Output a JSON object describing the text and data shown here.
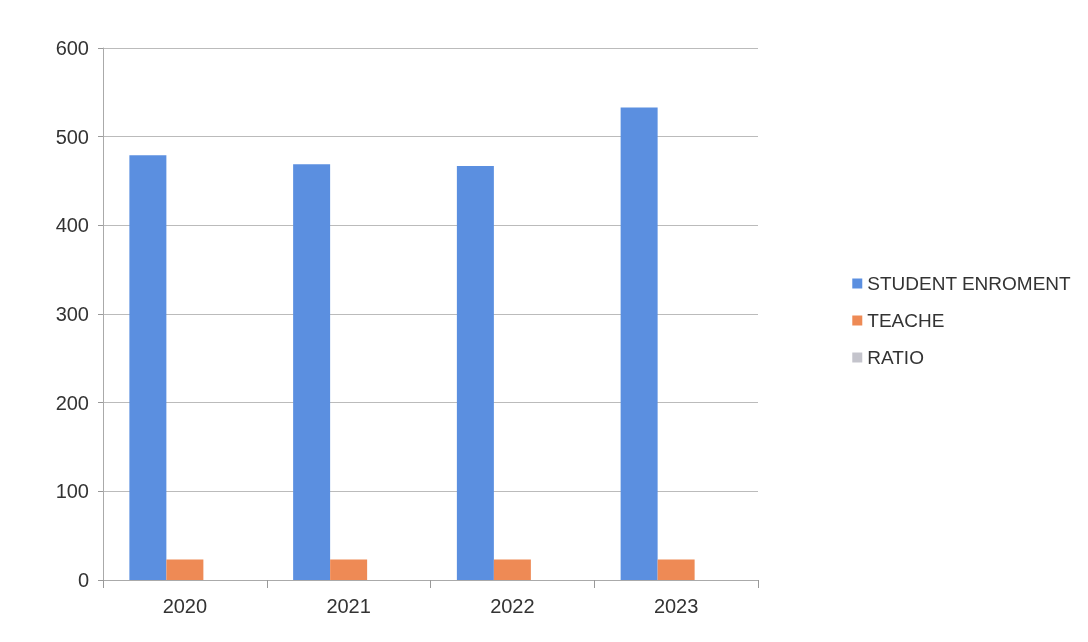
{
  "chart_data": {
    "type": "bar",
    "categories": [
      "2020",
      "2021",
      "2022",
      "2023"
    ],
    "series": [
      {
        "name": "STUDENT ENROMENT",
        "color": "#5b8fe0",
        "values": [
          479,
          469,
          467,
          533
        ]
      },
      {
        "name": "TEACHE",
        "color": "#ee8a55",
        "values": [
          23,
          23,
          23,
          23
        ]
      },
      {
        "name": "RATIO",
        "color": "#c4c4cc",
        "values": [
          null,
          null,
          null,
          null
        ]
      }
    ],
    "ylim": [
      0,
      600
    ],
    "yticks": [
      0,
      100,
      200,
      300,
      400,
      500,
      600
    ],
    "grid": "y",
    "legend": "right"
  }
}
